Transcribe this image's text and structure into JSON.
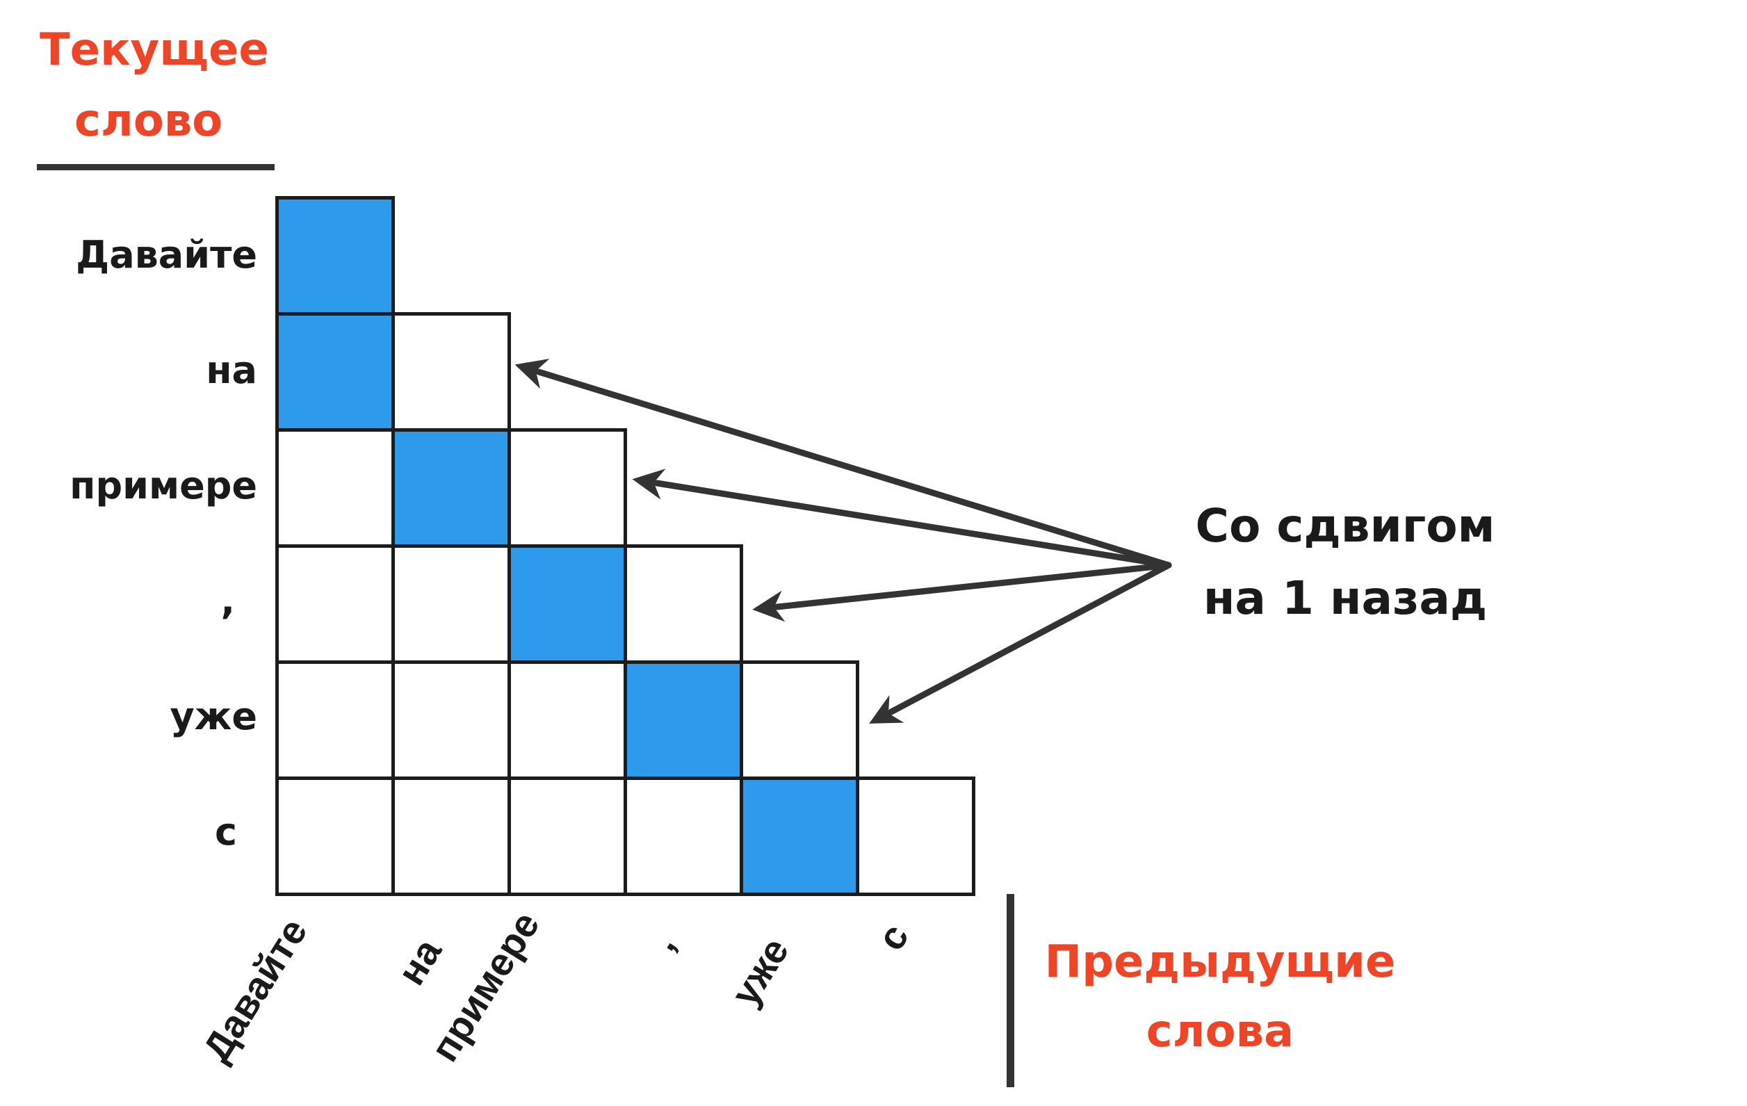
{
  "titles": {
    "current_word": [
      "Текущее",
      "слово"
    ],
    "previous_words": [
      "Предыдущие",
      "слова"
    ]
  },
  "annotation": [
    "Со сдвигом",
    "на 1 назад"
  ],
  "row_labels": [
    "Давайте",
    "на",
    "примере",
    ",",
    "уже",
    "с"
  ],
  "col_labels": [
    "Давайте",
    "на",
    "примере",
    ",",
    "уже",
    "с"
  ],
  "colors": {
    "accent": "#ef4526",
    "highlight": "#2e9aec",
    "line": "#1c1c1c",
    "arrow": "#333333"
  },
  "chart_data": {
    "type": "heatmap",
    "title": "",
    "xlabel": "Предыдущие слова",
    "ylabel": "Текущее слово",
    "rows": [
      "Давайте",
      "на",
      "примере",
      ",",
      "уже",
      "с"
    ],
    "cols": [
      "Давайте",
      "на",
      "примере",
      ",",
      "уже",
      "с"
    ],
    "matrix": [
      [
        1
      ],
      [
        1,
        0
      ],
      [
        0,
        1,
        0
      ],
      [
        0,
        0,
        1,
        0
      ],
      [
        0,
        0,
        0,
        1,
        0
      ],
      [
        0,
        0,
        0,
        0,
        1,
        0
      ]
    ],
    "annotation": "Со сдвигом на 1 назад"
  }
}
